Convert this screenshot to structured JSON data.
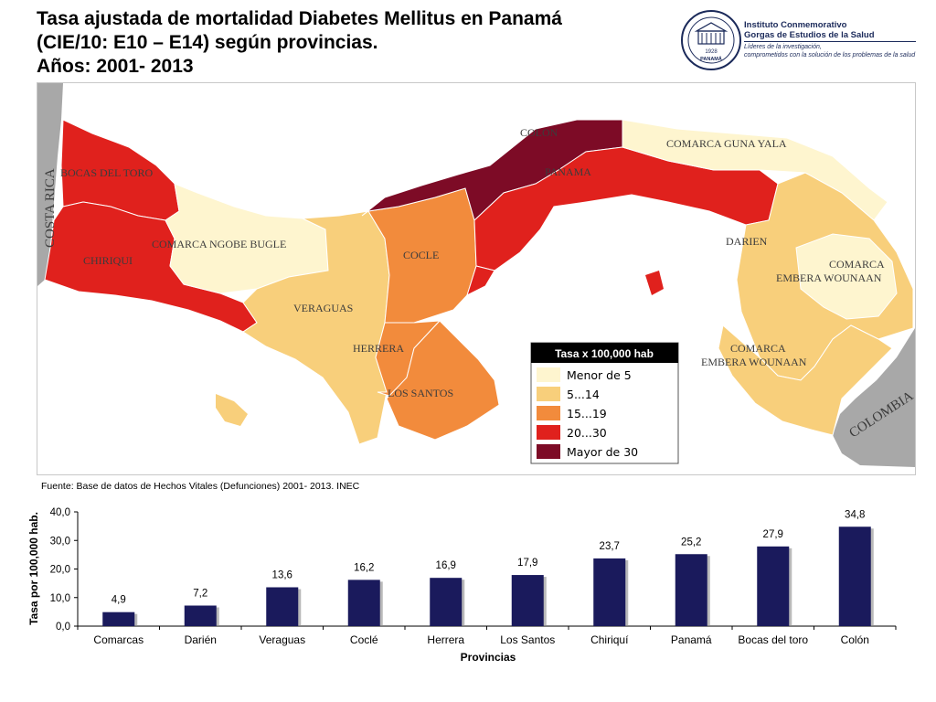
{
  "title": {
    "line1": "Tasa ajustada de mortalidad Diabetes Mellitus en Panamá",
    "line2": "(CIE/10: E10 – E14) según provincias.",
    "line3": "Años: 2001- 2013"
  },
  "logo": {
    "name_line1": "Instituto Conmemorativo",
    "name_line2": "Gorgas de Estudios de la Salud",
    "slogan_line1": "Líderes de la investigación,",
    "slogan_line2": "comprometidos con la solución de los problemas de la salud",
    "seal_year": "1928",
    "seal_country": "PANAMÁ"
  },
  "map": {
    "region_labels": {
      "costa_rica": "COSTA RICA",
      "bocas_del_toro": "BOCAS DEL TORO",
      "chiriqui": "CHIRIQUI",
      "comarca_ngobe_bugle": "COMARCA NGOBE BUGLE",
      "veraguas": "VERAGUAS",
      "cocle": "COCLE",
      "herrera": "HERRERA",
      "los_santos": "LOS SANTOS",
      "colon": "COLON",
      "panama": "PANAMA",
      "comarca_guna_yala": "COMARCA GUNA YALA",
      "darien": "DARIEN",
      "comarca_embera_1_line1": "COMARCA",
      "comarca_embera_1_line2": "EMBERA WOUNAAN",
      "comarca_embera_2_line1": "COMARCA",
      "comarca_embera_2_line2": "EMBERA WOUNAAN",
      "colombia": "COLOMBIA"
    },
    "legend": {
      "title": "Tasa x 100,000 hab",
      "items": [
        {
          "label": "Menor de 5",
          "color": "#fef5cf"
        },
        {
          "label": "5...14",
          "color": "#f8cf7b"
        },
        {
          "label": "15...19",
          "color": "#f28b3c"
        },
        {
          "label": "20...30",
          "color": "#e0211d"
        },
        {
          "label": "Mayor de 30",
          "color": "#7d0b26"
        }
      ]
    },
    "colors": {
      "neighbor": "#a8a8a8",
      "sea": "#ffffff",
      "border": "#ffffff"
    }
  },
  "source": "Fuente: Base de datos de Hechos Vitales (Defunciones) 2001- 2013. INEC",
  "chart_data": {
    "type": "bar",
    "categories": [
      "Comarcas",
      "Darién",
      "Veraguas",
      "Coclé",
      "Herrera",
      "Los Santos",
      "Chiriquí",
      "Panamá",
      "Bocas del toro",
      "Colón"
    ],
    "values": [
      4.9,
      7.2,
      13.6,
      16.2,
      16.9,
      17.9,
      23.7,
      25.2,
      27.9,
      34.8
    ],
    "value_labels": [
      "4,9",
      "7,2",
      "13,6",
      "16,2",
      "16,9",
      "17,9",
      "23,7",
      "25,2",
      "27,9",
      "34,8"
    ],
    "ylim": [
      0,
      40
    ],
    "yticks": [
      0,
      10,
      20,
      30,
      40
    ],
    "ytick_labels": [
      "0,0",
      "10,0",
      "20,0",
      "30,0",
      "40,0"
    ],
    "xlabel": "Provincias",
    "ylabel": "Tasa por 100,000 hab.",
    "bar_color": "#1a1a5c",
    "grid": false
  }
}
